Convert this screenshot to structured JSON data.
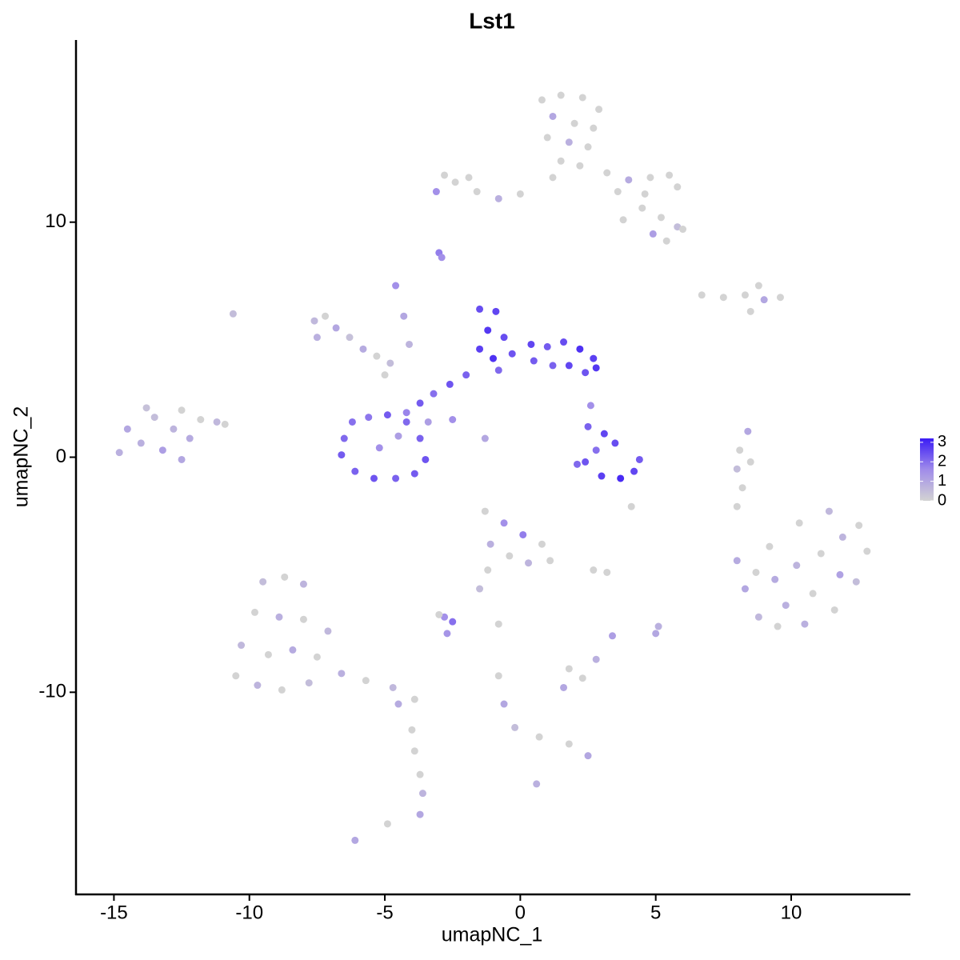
{
  "chart_data": {
    "type": "scatter",
    "title": "Lst1",
    "x_label": "umapNC_1",
    "y_label": "umapNC_2",
    "xlim": [
      -16.4,
      14.4
    ],
    "ylim": [
      -18.6,
      17.75
    ],
    "xticks": [
      -15,
      -10,
      -5,
      0,
      5,
      10
    ],
    "yticks": [
      -10,
      0,
      10
    ],
    "clim": [
      0,
      3.2
    ],
    "cticks": [
      0,
      1,
      2,
      3
    ],
    "colors": [
      "#d3d3d3",
      "#a08cea",
      "#3b1cf5"
    ],
    "x": [
      0.8,
      1.5,
      2.3,
      2.9,
      1.2,
      2.0,
      2.7,
      1,
      1.8,
      2.5,
      1.5,
      2.2,
      1.2,
      3.2,
      4,
      4.8,
      5.5,
      5.8,
      4.6,
      3.6,
      0,
      -0.8,
      -1.6,
      -2.4,
      -3.1,
      -2.8,
      -1.9,
      4.5,
      5.2,
      5.8,
      4.9,
      6,
      5.4,
      3.8,
      -3,
      -2.9,
      6.7,
      7.5,
      8.3,
      9,
      9.6,
      8.8,
      8.5,
      -14.5,
      -14,
      -13.5,
      -13.2,
      -12.8,
      -12.5,
      -12.2,
      -11.8,
      -11.2,
      -12.5,
      -13.8,
      -14.8,
      -10.9,
      -10.6,
      -7.6,
      -7.2,
      -6.8,
      -6.3,
      -5.8,
      -5.3,
      -7.5,
      -4.8,
      -4.6,
      -4.3,
      -4.1,
      -5,
      -1.5,
      -0.9,
      -1.2,
      -0.6,
      -1.5,
      -0.3,
      0.4,
      1.0,
      1.6,
      2.2,
      2.7,
      2.4,
      1.8,
      1.2,
      0.5,
      -0.8,
      2.8,
      -1.0,
      -2,
      -2.6,
      -3.2,
      -3.7,
      -4.2,
      -3.4,
      -2.5,
      -1.3,
      -6.5,
      -6.2,
      -5.6,
      -4.9,
      -4.2,
      -3.7,
      -3.5,
      -3.9,
      -4.6,
      -5.4,
      -6.1,
      -6.6,
      -5.2,
      -4.5,
      2.5,
      3.1,
      3.5,
      2.8,
      2.4,
      3.0,
      3.7,
      4.2,
      4.4,
      2.1,
      2.6,
      4.1,
      8.4,
      8.1,
      8,
      8.2,
      8,
      8.5,
      8,
      8.3,
      8.8,
      9.5,
      10.5,
      11.6,
      12.4,
      12.8,
      12.5,
      11.4,
      10.3,
      9.2,
      9.4,
      10.2,
      11.1,
      11.8,
      10.8,
      9.8,
      8.7,
      11.9,
      -9.5,
      -8.7,
      -8,
      -9.8,
      -8.9,
      -8,
      -10.3,
      -9.3,
      -8.4,
      -7.5,
      -10.5,
      -9.7,
      -8.8,
      -7.8,
      -6.6,
      -5.7,
      -4.7,
      -3.9,
      -4.5,
      -7.1,
      -4,
      -3.9,
      -3.7,
      -3.6,
      -3.7,
      -4.9,
      -6.1,
      -1.3,
      -0.6,
      0.1,
      0.8,
      1.1,
      -1.1,
      -0.4,
      0.3,
      -1.2,
      -1.5,
      -2.8,
      -3.0,
      -2.5,
      -2.7,
      -0.8,
      2.7,
      3.2,
      5.1,
      5.0,
      3.4,
      1.8,
      2.3,
      1.6,
      2.8,
      -0.8,
      -0.6,
      -0.2,
      0.7,
      1.8,
      2.5,
      0.6
    ],
    "y": [
      15.2,
      15.4,
      15.3,
      14.8,
      14.5,
      14.2,
      14,
      13.6,
      13.4,
      13.2,
      12.6,
      12.4,
      11.9,
      12.1,
      11.8,
      11.9,
      12,
      11.5,
      11.2,
      11.3,
      11.2,
      11.0,
      11.3,
      11.7,
      11.3,
      12,
      11.9,
      10.6,
      10.2,
      9.8,
      9.5,
      9.7,
      9.2,
      10.1,
      8.7,
      8.5,
      6.9,
      6.8,
      6.9,
      6.7,
      6.8,
      7.3,
      6.2,
      1.2,
      0.6,
      1.7,
      0.3,
      1.2,
      2,
      0.8,
      1.6,
      1.5,
      -0.1,
      2.1,
      0.2,
      1.4,
      6.1,
      5.8,
      6,
      5.5,
      5.1,
      4.6,
      4.3,
      5.1,
      4,
      7.3,
      6,
      4.8,
      3.5,
      6.3,
      6.2,
      5.4,
      5.1,
      4.6,
      4.4,
      4.8,
      4.7,
      4.9,
      4.6,
      4.2,
      3.6,
      3.9,
      3.9,
      4.1,
      3.7,
      3.8,
      4.2,
      3.5,
      3.1,
      2.7,
      2.3,
      1.9,
      1.5,
      1.6,
      0.8,
      0.8,
      1.5,
      1.7,
      1.8,
      1.5,
      0.8,
      -0.1,
      -0.7,
      -0.9,
      -0.9,
      -0.6,
      0.1,
      0.4,
      0.9,
      1.3,
      1.0,
      0.6,
      0.3,
      -0.2,
      -0.8,
      -0.9,
      -0.6,
      -0.1,
      -0.3,
      2.2,
      -2.1,
      1.1,
      0.3,
      -0.5,
      -1.3,
      -2.1,
      -0.2,
      -4.4,
      -5.6,
      -6.8,
      -7.2,
      -7.1,
      -6.5,
      -5.3,
      -4,
      -2.9,
      -2.3,
      -2.8,
      -3.8,
      -5.2,
      -4.6,
      -4.1,
      -5.0,
      -5.8,
      -6.3,
      -4.9,
      -3.4,
      -5.3,
      -5.1,
      -5.4,
      -6.6,
      -6.8,
      -6.9,
      -8,
      -8.4,
      -8.2,
      -8.5,
      -9.3,
      -9.7,
      -9.9,
      -9.6,
      -9.2,
      -9.5,
      -9.8,
      -10.3,
      -10.5,
      -7.4,
      -11.6,
      -12.5,
      -13.5,
      -14.3,
      -15.2,
      -15.6,
      -16.3,
      -2.3,
      -2.8,
      -3.3,
      -3.7,
      -4.4,
      -3.7,
      -4.2,
      -4.5,
      -4.8,
      -5.6,
      -6.8,
      -6.7,
      -7.0,
      -7.5,
      -7.1,
      -4.8,
      -4.9,
      -7.2,
      -7.5,
      -7.6,
      -9.0,
      -9.4,
      -9.8,
      -8.6,
      -9.3,
      -10.5,
      -11.5,
      -11.9,
      -12.2,
      -12.7,
      -13.9
    ],
    "values": [
      0,
      0,
      0,
      0,
      1,
      0,
      0,
      0,
      0.8,
      0,
      0,
      0,
      0,
      0,
      0.9,
      0,
      0,
      0,
      0,
      0,
      0,
      0.8,
      0,
      0,
      1.5,
      0,
      0,
      0,
      0,
      0.5,
      1.2,
      0,
      0,
      0,
      1.8,
      1.5,
      0,
      0,
      0,
      1,
      0,
      0,
      0,
      1,
      0.8,
      0.5,
      1.2,
      0.7,
      0,
      0.9,
      0,
      0.6,
      1,
      0.4,
      0.8,
      0,
      0.5,
      0.6,
      0,
      1,
      0.4,
      0.9,
      0,
      0.8,
      0.5,
      1.5,
      1,
      0.7,
      0,
      2.5,
      2.6,
      2.8,
      2.5,
      2.7,
      2.4,
      2.6,
      2.3,
      2.5,
      2.9,
      2.7,
      2.4,
      2.6,
      2.2,
      2.3,
      2.1,
      2.8,
      2.9,
      2.2,
      2.4,
      2,
      2.3,
      1.7,
      1.2,
      1.5,
      1,
      2.1,
      2,
      1.9,
      2.3,
      2.1,
      2.2,
      2.4,
      2.3,
      2.2,
      2.4,
      2.2,
      2.3,
      1.5,
      1.2,
      2.2,
      2.6,
      2.5,
      2,
      2.4,
      2.7,
      3,
      2.6,
      2.3,
      2.1,
      1.5,
      0,
      1,
      0,
      0.5,
      0,
      0,
      0,
      0.9,
      1,
      0.6,
      0,
      0.8,
      0,
      0.5,
      0,
      0,
      0.6,
      0,
      0,
      0.9,
      0.7,
      0,
      1.1,
      0,
      0.8,
      0,
      0.7,
      0.5,
      0,
      0.7,
      0,
      0.8,
      0,
      0.6,
      0,
      0.9,
      0,
      0,
      0.7,
      0,
      0.5,
      0.8,
      0,
      0.6,
      0,
      0.9,
      0.6,
      0,
      0,
      0,
      0.7,
      1,
      0,
      1,
      0,
      1.5,
      1.8,
      0,
      0,
      0.8,
      0,
      0.7,
      0,
      0.5,
      1.5,
      0,
      2,
      1.4,
      0,
      0,
      0,
      0.8,
      1,
      1.2,
      0,
      0,
      1,
      0.8,
      0,
      1,
      0.5,
      0,
      0,
      1,
      0.8
    ]
  }
}
